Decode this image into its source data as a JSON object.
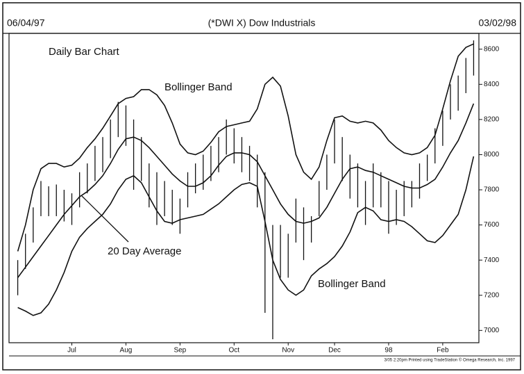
{
  "chart_data": {
    "type": "hlc",
    "title": "(*DWI X) Dow Industrials",
    "start_date": "06/04/97",
    "end_date": "03/02/98",
    "subtitle": "Daily Bar Chart",
    "annotations": [
      "Bollinger Band",
      "20 Day Average",
      "Bollinger Band"
    ],
    "footnote": "3/05 2:20pm Printed using TradeStation © Omega Research, Inc. 1997",
    "color": "#111111",
    "categories": [
      null,
      null,
      null,
      null,
      null,
      null,
      null,
      "Jul",
      null,
      null,
      null,
      null,
      null,
      null,
      "Aug",
      null,
      null,
      null,
      null,
      null,
      null,
      "Sep",
      null,
      null,
      null,
      null,
      null,
      null,
      "Oct",
      null,
      null,
      null,
      null,
      null,
      null,
      "Nov",
      null,
      null,
      null,
      null,
      null,
      "Dec",
      null,
      null,
      null,
      null,
      null,
      null,
      "98",
      null,
      null,
      null,
      null,
      null,
      null,
      "Feb",
      null,
      null,
      null,
      null
    ],
    "high": [
      7400,
      7550,
      7700,
      7850,
      7820,
      7830,
      7800,
      7780,
      7900,
      7950,
      8050,
      8100,
      8200,
      8300,
      8280,
      8200,
      8100,
      7950,
      7900,
      7850,
      7800,
      7750,
      7900,
      7950,
      8000,
      8050,
      8100,
      8200,
      8150,
      8100,
      8050,
      8000,
      7900,
      7600,
      7600,
      7550,
      7750,
      7700,
      7650,
      7850,
      8000,
      8200,
      8100,
      8000,
      7950,
      7850,
      7950,
      7900,
      7850,
      7800,
      7850,
      7850,
      7950,
      8000,
      8150,
      8250,
      8400,
      8450,
      8550,
      8650
    ],
    "low": [
      7200,
      7350,
      7500,
      7650,
      7650,
      7650,
      7620,
      7600,
      7700,
      7780,
      7850,
      7900,
      7980,
      8100,
      8050,
      7800,
      7850,
      7700,
      7600,
      7650,
      7600,
      7550,
      7700,
      7780,
      7800,
      7850,
      7900,
      8000,
      7950,
      7900,
      7850,
      7700,
      7100,
      6950,
      7300,
      7300,
      7500,
      7400,
      7500,
      7650,
      7800,
      7950,
      7850,
      7750,
      7700,
      7600,
      7700,
      7700,
      7550,
      7600,
      7650,
      7700,
      7750,
      7850,
      7950,
      8050,
      8200,
      8250,
      8350,
      8450
    ],
    "upper_band": [
      7450,
      7600,
      7800,
      7920,
      7950,
      7950,
      7930,
      7940,
      7980,
      8040,
      8090,
      8150,
      8220,
      8290,
      8320,
      8330,
      8370,
      8370,
      8340,
      8280,
      8180,
      8060,
      8010,
      8000,
      8020,
      8070,
      8130,
      8160,
      8170,
      8180,
      8190,
      8260,
      8400,
      8440,
      8390,
      8220,
      8000,
      7900,
      7860,
      7930,
      8080,
      8210,
      8220,
      8190,
      8180,
      8190,
      8180,
      8140,
      8080,
      8040,
      8010,
      8000,
      8010,
      8040,
      8110,
      8260,
      8420,
      8560,
      8610,
      8630
    ],
    "middle_band": [
      7300,
      7360,
      7420,
      7480,
      7540,
      7600,
      7660,
      7710,
      7760,
      7790,
      7830,
      7880,
      7950,
      8030,
      8090,
      8100,
      8080,
      8040,
      7990,
      7940,
      7890,
      7850,
      7820,
      7820,
      7840,
      7880,
      7940,
      7990,
      8010,
      8010,
      8000,
      7960,
      7880,
      7800,
      7720,
      7660,
      7620,
      7610,
      7620,
      7640,
      7700,
      7780,
      7860,
      7920,
      7930,
      7910,
      7900,
      7880,
      7860,
      7840,
      7820,
      7810,
      7810,
      7830,
      7860,
      7930,
      8010,
      8080,
      8180,
      8290
    ],
    "lower_band": [
      7130,
      7110,
      7085,
      7100,
      7150,
      7230,
      7330,
      7450,
      7530,
      7580,
      7620,
      7660,
      7720,
      7800,
      7860,
      7880,
      7840,
      7760,
      7680,
      7620,
      7610,
      7630,
      7640,
      7650,
      7660,
      7690,
      7720,
      7760,
      7800,
      7830,
      7840,
      7820,
      7620,
      7400,
      7290,
      7230,
      7200,
      7230,
      7310,
      7350,
      7380,
      7420,
      7480,
      7560,
      7670,
      7700,
      7680,
      7630,
      7620,
      7630,
      7620,
      7590,
      7550,
      7510,
      7500,
      7540,
      7600,
      7660,
      7800,
      7990
    ],
    "ylim": [
      6930,
      8690
    ],
    "yticks": [
      7000,
      7200,
      7400,
      7600,
      7800,
      8000,
      8200,
      8400,
      8600
    ]
  }
}
